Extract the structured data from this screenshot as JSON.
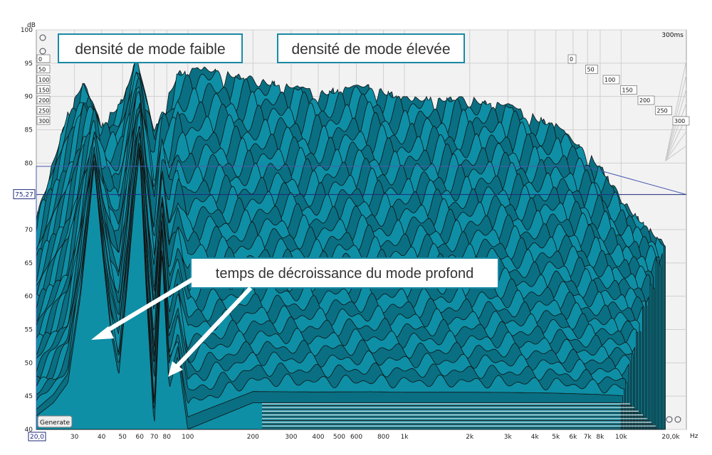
{
  "chart_data": {
    "type": "area",
    "subtype": "waterfall-3d",
    "ylabel": "dB",
    "xunit": "Hz",
    "ylim": [
      40,
      100
    ],
    "xlim": [
      20,
      20000
    ],
    "xscale": "log",
    "grid": true,
    "yticks": [
      {
        "v": 100,
        "label": "100"
      },
      {
        "v": 95,
        "label": "95"
      },
      {
        "v": 90,
        "label": "90"
      },
      {
        "v": 85,
        "label": "85"
      },
      {
        "v": 80,
        "label": "80"
      },
      {
        "v": 70,
        "label": "70"
      },
      {
        "v": 65,
        "label": "65"
      },
      {
        "v": 60,
        "label": "60"
      },
      {
        "v": 55,
        "label": "55"
      },
      {
        "v": 50,
        "label": "50"
      },
      {
        "v": 45,
        "label": "45"
      },
      {
        "v": 40,
        "label": "40"
      }
    ],
    "xticks": [
      {
        "v": 30,
        "label": "30"
      },
      {
        "v": 40,
        "label": "40"
      },
      {
        "v": 50,
        "label": "50"
      },
      {
        "v": 60,
        "label": "60"
      },
      {
        "v": 70,
        "label": "70"
      },
      {
        "v": 80,
        "label": "80"
      },
      {
        "v": 100,
        "label": "100"
      },
      {
        "v": 200,
        "label": "200"
      },
      {
        "v": 300,
        "label": "300"
      },
      {
        "v": 400,
        "label": "400"
      },
      {
        "v": 500,
        "label": "500"
      },
      {
        "v": 600,
        "label": "600"
      },
      {
        "v": 800,
        "label": "800"
      },
      {
        "v": 1000,
        "label": "1k"
      },
      {
        "v": 2000,
        "label": "2k"
      },
      {
        "v": 3000,
        "label": "3k"
      },
      {
        "v": 4000,
        "label": "4k"
      },
      {
        "v": 5000,
        "label": "5k"
      },
      {
        "v": 6000,
        "label": "6k"
      },
      {
        "v": 7000,
        "label": "7k"
      },
      {
        "v": 8000,
        "label": "8k"
      },
      {
        "v": 10000,
        "label": "10k"
      }
    ],
    "x_start_label": "20,0",
    "x_end_label": "20,0k",
    "cursor_level": {
      "v": 75.27,
      "label": "75,27"
    },
    "time_axis": {
      "unit_label": "300ms",
      "ticks": [
        "0",
        "50",
        "100",
        "150",
        "200",
        "250",
        "300"
      ]
    },
    "slices": 30,
    "front_response": [
      {
        "f": 20,
        "db": 42
      },
      {
        "f": 24,
        "db": 44
      },
      {
        "f": 28,
        "db": 47
      },
      {
        "f": 32,
        "db": 60
      },
      {
        "f": 35,
        "db": 72
      },
      {
        "f": 37,
        "db": 80
      },
      {
        "f": 40,
        "db": 68
      },
      {
        "f": 44,
        "db": 55
      },
      {
        "f": 48,
        "db": 48
      },
      {
        "f": 52,
        "db": 60
      },
      {
        "f": 57,
        "db": 75
      },
      {
        "f": 60,
        "db": 82
      },
      {
        "f": 64,
        "db": 62
      },
      {
        "f": 70,
        "db": 40
      },
      {
        "f": 76,
        "db": 67
      },
      {
        "f": 82,
        "db": 46
      },
      {
        "f": 90,
        "db": 51
      },
      {
        "f": 100,
        "db": 40
      },
      {
        "f": 200,
        "db": 44
      },
      {
        "f": 10000,
        "db": 44
      }
    ],
    "envelope": [
      {
        "f": 20,
        "db": 72
      },
      {
        "f": 28,
        "db": 88
      },
      {
        "f": 33,
        "db": 92.5
      },
      {
        "f": 40,
        "db": 86
      },
      {
        "f": 50,
        "db": 90
      },
      {
        "f": 58,
        "db": 96
      },
      {
        "f": 70,
        "db": 85
      },
      {
        "f": 90,
        "db": 94
      },
      {
        "f": 120,
        "db": 94.5
      },
      {
        "f": 200,
        "db": 93
      },
      {
        "f": 400,
        "db": 91
      },
      {
        "f": 700,
        "db": 92
      },
      {
        "f": 1000,
        "db": 90
      },
      {
        "f": 2000,
        "db": 90
      },
      {
        "f": 3000,
        "db": 89
      },
      {
        "f": 5000,
        "db": 86
      },
      {
        "f": 8000,
        "db": 80
      },
      {
        "f": 10000,
        "db": 75
      },
      {
        "f": 12000,
        "db": 72
      },
      {
        "f": 16000,
        "db": 68
      }
    ]
  },
  "annotations": {
    "low_density": "densité de mode faible",
    "high_density": "densité de mode élevée",
    "decay": "temps de décroissance du mode profond"
  },
  "controls": {
    "generate_label": "Generate"
  },
  "colors": {
    "fill": "#0e8fa6",
    "fill_dark": "#0a6f82",
    "stroke": "#111111",
    "grid": "#d0d0d0",
    "cursor": "#1f2a7a",
    "annotation_border": "#1a8aa5"
  }
}
